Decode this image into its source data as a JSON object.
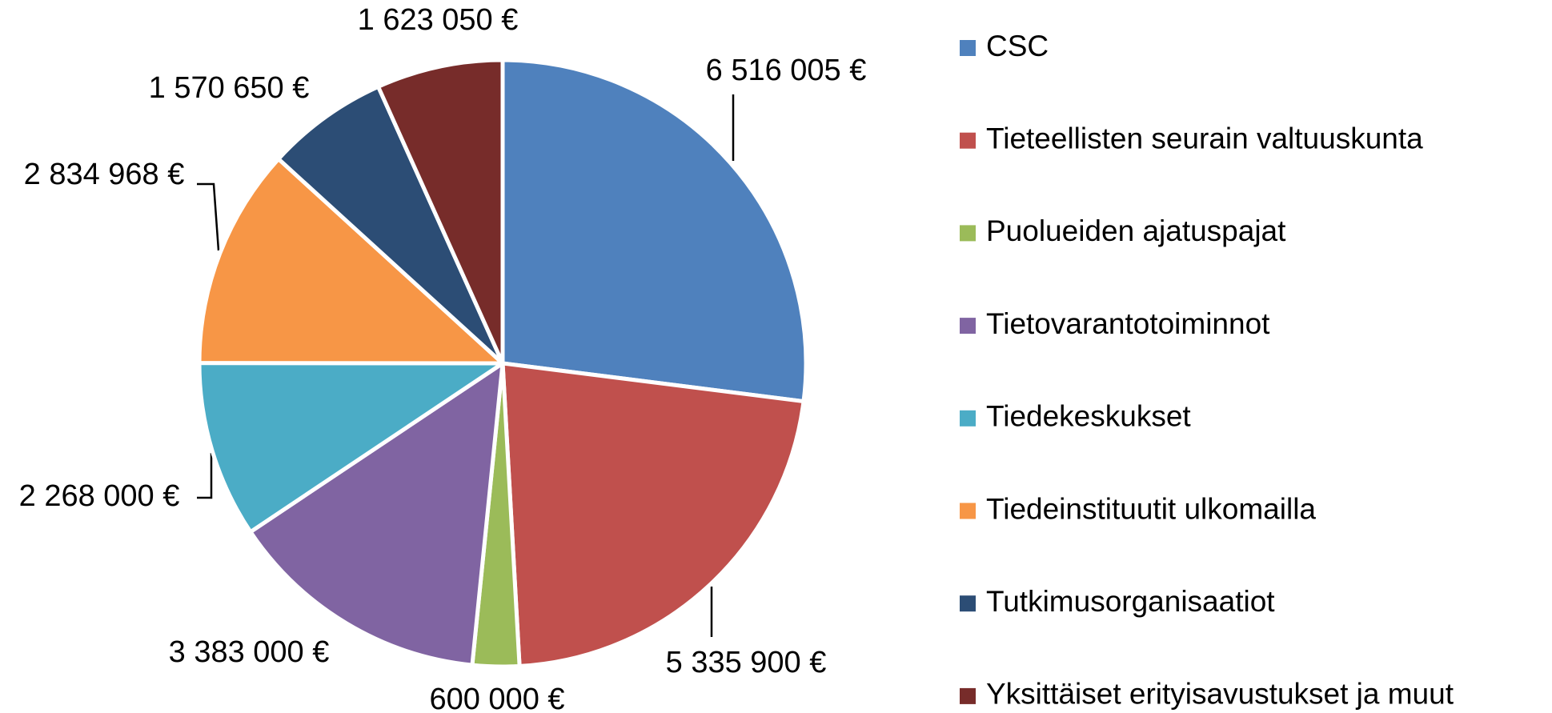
{
  "chart_data": {
    "type": "pie",
    "categories": [
      "CSC",
      "Tieteellisten seurain valtuuskunta",
      "Puolueiden ajatuspajat",
      "Tietovarantotoiminnot",
      "Tiedekeskukset",
      "Tiedeinstituutit ulkomailla",
      "Tutkimusorganisaatiot",
      "Yksittäiset erityisavustukset ja muut"
    ],
    "values": [
      6516005,
      5335900,
      600000,
      3383000,
      2268000,
      2834968,
      1570650,
      1623050
    ],
    "value_labels": [
      "6 516 005 €",
      "5 335 900 €",
      "600 000 €",
      "3 383 000 €",
      "2 268 000 €",
      "2 834 968 €",
      "1 570 650 €",
      "1 623 050 €"
    ],
    "colors": [
      "#4f81bd",
      "#c0504d",
      "#9bbb59",
      "#8064a2",
      "#4bacc6",
      "#f79646",
      "#2c4d75",
      "#772c2a"
    ],
    "legend": "right"
  }
}
